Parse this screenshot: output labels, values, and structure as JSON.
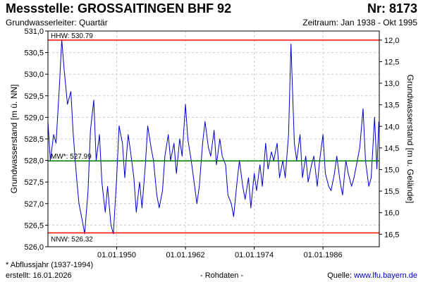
{
  "header": {
    "title": "Messstelle: GROSSAITINGEN BHF 92",
    "number": "Nr: 8173",
    "aquifer": "Grundwasserleiter: Quartär",
    "period": "Zeitraum: Jan 1938 - Okt 1995"
  },
  "footer": {
    "note": "* Abflussjahr (1937-1994)",
    "created": "erstellt:  16.01.2026",
    "raw": "- Rohdaten -",
    "source_label": "Quelle: ",
    "source_link": "www.lfu.bayern.de"
  },
  "colors": {
    "series": "#0000cc",
    "extreme_lines": "#ff0000",
    "mean_line": "#008000",
    "grid": "#cccccc"
  },
  "chart_data": {
    "type": "line",
    "title": "",
    "xlabel": "",
    "ylabel": "Grundwasserstand [m ü. NN]",
    "ylabel_right": "Grundwasserstand [m u. Gelände]",
    "xlim": [
      "1938-01-01",
      "1995-10-31"
    ],
    "ylim": [
      526.0,
      531.0
    ],
    "ylim_right": [
      16.79,
      11.79
    ],
    "grid": true,
    "x_ticks": [
      "01.01.1950",
      "01.01.1962",
      "01.01.1974",
      "01.01.1986"
    ],
    "y_ticks": [
      "526,0",
      "526,5",
      "527,0",
      "527,5",
      "528,0",
      "528,5",
      "529,0",
      "529,5",
      "530,0",
      "530,5",
      "531,0"
    ],
    "y_ticks_right": [
      "12,0",
      "12,5",
      "13,0",
      "13,5",
      "14,0",
      "14,5",
      "15,0",
      "15,5",
      "16,0",
      "16,5"
    ],
    "y_ticks_right_values": [
      12.0,
      12.5,
      13.0,
      13.5,
      14.0,
      14.5,
      15.0,
      15.5,
      16.0,
      16.5
    ],
    "reference_lines": [
      {
        "label": "HHW: 530.79",
        "value": 530.79
      },
      {
        "label": "MW*: 527.99",
        "value": 527.99
      },
      {
        "label": "NNW: 526.32",
        "value": 526.32
      }
    ],
    "series": [
      {
        "x": [
          "1938-01",
          "1938-06",
          "1939-01",
          "1939-06",
          "1940-01",
          "1940-06",
          "1940-11",
          "1941-06",
          "1942-01",
          "1942-06",
          "1943-01",
          "1943-06",
          "1944-01",
          "1944-06",
          "1945-01",
          "1945-06",
          "1946-01",
          "1946-06",
          "1947-01",
          "1947-06",
          "1948-01",
          "1948-06",
          "1949-01",
          "1949-06",
          "1950-01",
          "1950-06",
          "1951-01",
          "1951-06",
          "1952-01",
          "1952-06",
          "1953-01",
          "1953-06",
          "1954-01",
          "1954-06",
          "1955-01",
          "1955-06",
          "1956-01",
          "1956-06",
          "1957-01",
          "1957-06",
          "1958-01",
          "1958-06",
          "1959-01",
          "1959-06",
          "1960-01",
          "1960-06",
          "1961-01",
          "1961-06",
          "1962-01",
          "1962-06",
          "1963-01",
          "1963-06",
          "1964-01",
          "1964-06",
          "1965-01",
          "1965-06",
          "1966-01",
          "1966-06",
          "1967-01",
          "1967-06",
          "1968-01",
          "1968-06",
          "1969-01",
          "1969-06",
          "1970-01",
          "1970-06",
          "1971-01",
          "1971-06",
          "1972-01",
          "1972-06",
          "1973-01",
          "1973-06",
          "1974-01",
          "1974-06",
          "1975-01",
          "1975-06",
          "1976-01",
          "1976-06",
          "1977-01",
          "1977-06",
          "1978-01",
          "1978-06",
          "1979-01",
          "1979-06",
          "1980-01",
          "1980-06",
          "1981-01",
          "1981-06",
          "1982-01",
          "1982-06",
          "1983-01",
          "1983-06",
          "1984-01",
          "1984-06",
          "1985-01",
          "1985-06",
          "1986-01",
          "1986-06",
          "1987-01",
          "1987-06",
          "1988-01",
          "1988-06",
          "1989-01",
          "1989-06",
          "1990-01",
          "1990-06",
          "1991-01",
          "1991-06",
          "1992-01",
          "1992-06",
          "1993-01",
          "1993-06",
          "1994-01",
          "1994-06",
          "1995-01",
          "1995-06",
          "1995-10"
        ],
        "y": [
          528.9,
          528.0,
          528.6,
          528.4,
          529.7,
          530.8,
          530.1,
          529.3,
          529.6,
          528.6,
          527.6,
          527.0,
          526.6,
          526.3,
          527.3,
          528.7,
          529.4,
          528.0,
          528.6,
          527.5,
          526.8,
          527.4,
          526.5,
          526.3,
          527.6,
          528.8,
          528.4,
          527.6,
          528.6,
          528.2,
          527.6,
          526.8,
          527.5,
          526.9,
          527.9,
          528.8,
          528.3,
          528.0,
          527.2,
          526.9,
          527.3,
          528.1,
          528.6,
          528.0,
          528.4,
          527.7,
          528.5,
          528.1,
          529.3,
          528.5,
          528.0,
          527.6,
          527.0,
          527.4,
          528.4,
          528.9,
          528.3,
          528.1,
          528.7,
          527.9,
          528.5,
          528.1,
          527.9,
          527.2,
          527.0,
          526.7,
          527.5,
          528.0,
          527.4,
          527.1,
          527.6,
          526.9,
          527.7,
          527.3,
          527.9,
          527.4,
          528.4,
          527.8,
          528.2,
          528.0,
          528.4,
          527.6,
          528.0,
          527.6,
          528.6,
          530.7,
          528.4,
          528.0,
          528.6,
          527.6,
          528.1,
          527.5,
          527.9,
          528.1,
          527.4,
          528.0,
          528.6,
          527.7,
          527.4,
          527.3,
          527.7,
          528.1,
          527.5,
          527.2,
          528.0,
          527.7,
          527.4,
          527.6,
          528.0,
          528.3,
          529.2,
          528.0,
          527.4,
          527.6,
          529.0,
          527.8,
          528.9
        ]
      }
    ]
  }
}
